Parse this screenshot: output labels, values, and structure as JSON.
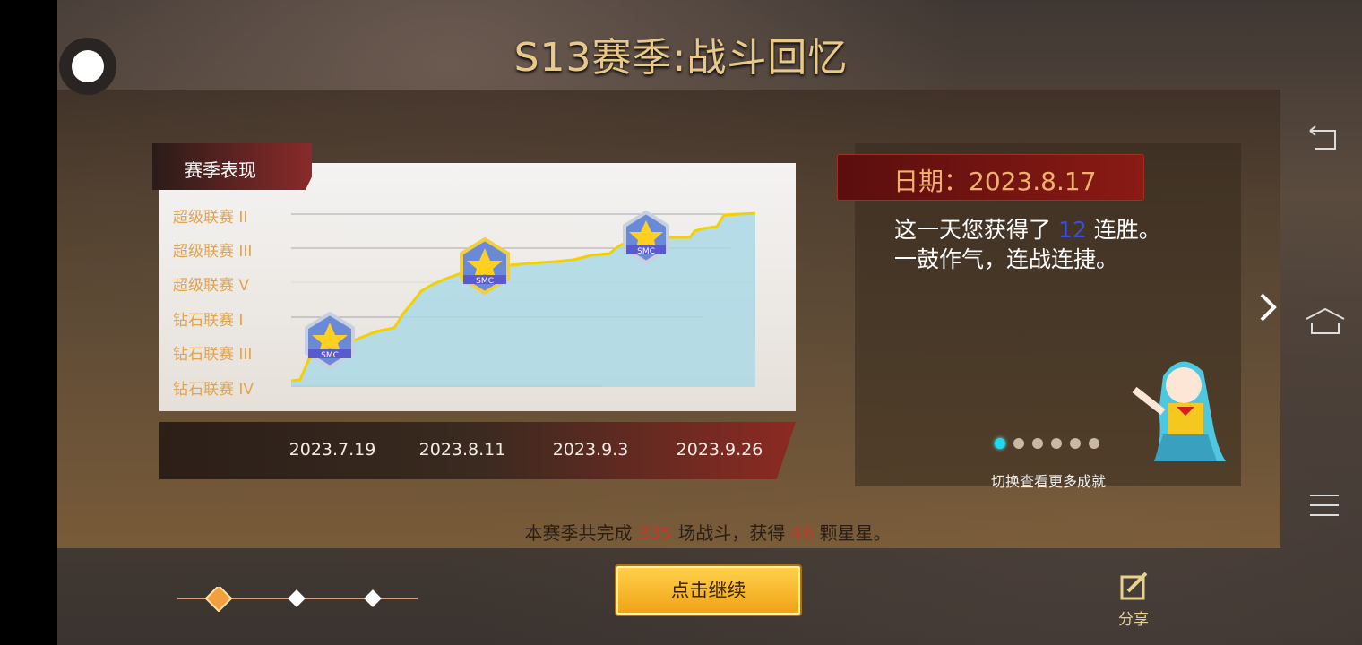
{
  "header": {
    "title": "S13赛季:战斗回忆"
  },
  "chart": {
    "tab_label": "赛季表现",
    "y_labels": [
      "超级联赛 II",
      "超级联赛 III",
      "超级联赛 V",
      "钻石联赛 I",
      "钻石联赛 III",
      "钻石联赛 IV"
    ],
    "x_labels": [
      "2023.7.19",
      "2023.8.11",
      "2023.9.3",
      "2023.9.26"
    ],
    "badge_text": "SMC",
    "line_color": "#f5d000",
    "fill_color": "#a8d8e6"
  },
  "detail": {
    "date_label": "日期：2023.8.17",
    "line1_pre": "这一天您获得了 ",
    "line1_num": "12",
    "line1_post": " 连胜。",
    "line2": "一鼓作气，连战连捷。",
    "page_count": 6,
    "active_page": 1,
    "hint": "切换查看更多成就"
  },
  "summary": {
    "pre": "本赛季共完成 ",
    "battles": "335",
    "mid": " 场战斗，获得 ",
    "stars": "46",
    "post": " 颗星星。"
  },
  "footer": {
    "continue_label": "点击继续",
    "share_label": "分享"
  },
  "colors": {
    "accent_gold": "#e8c98a",
    "highlight_red": "#c0392b",
    "highlight_blue": "#3a4ed8"
  }
}
